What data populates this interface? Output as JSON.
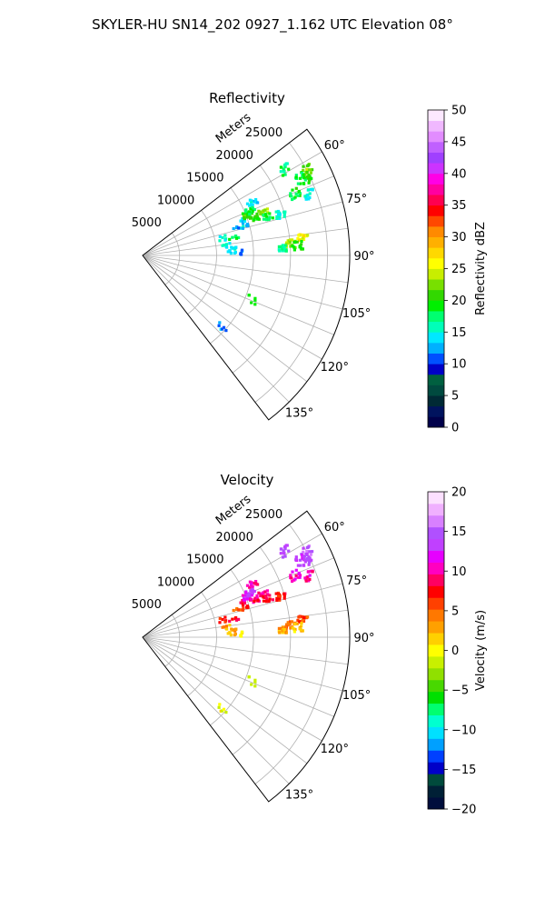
{
  "suptitle": "SKYLER-HU  SN14_202  0927_1.162 UTC Elevation 08°",
  "chart_data": [
    {
      "type": "heatmap",
      "projection": "polar-sector",
      "title": "Reflectivity",
      "radial_label": "Meters",
      "r_range": [
        0,
        28000
      ],
      "r_ticks": [
        "5000",
        "10000",
        "15000",
        "20000",
        "25000"
      ],
      "theta_range_deg": [
        52.5,
        142.5
      ],
      "theta_ticks": [
        "60°",
        "75°",
        "90°",
        "105°",
        "120°",
        "135°"
      ],
      "grid": true,
      "colorbar": {
        "label": "Reflectivity dBZ",
        "range": [
          0,
          50
        ],
        "ticks": [
          "0",
          "5",
          "10",
          "15",
          "20",
          "25",
          "30",
          "35",
          "40",
          "45",
          "50"
        ],
        "colormap": "pyart_NWSRef"
      },
      "echoes": [
        {
          "az_deg": 65.0,
          "r_m": 24500,
          "value": 20
        },
        {
          "az_deg": 62.5,
          "r_m": 25200,
          "value": 22
        },
        {
          "az_deg": 64.0,
          "r_m": 23800,
          "value": 18
        },
        {
          "az_deg": 59.0,
          "r_m": 22500,
          "value": 17
        },
        {
          "az_deg": 68.0,
          "r_m": 22200,
          "value": 19
        },
        {
          "az_deg": 70.0,
          "r_m": 24000,
          "value": 15
        },
        {
          "az_deg": 71.5,
          "r_m": 16000,
          "value": 20
        },
        {
          "az_deg": 70.5,
          "r_m": 17500,
          "value": 23
        },
        {
          "az_deg": 73.0,
          "r_m": 17800,
          "value": 18
        },
        {
          "az_deg": 73.5,
          "r_m": 19500,
          "value": 15
        },
        {
          "az_deg": 71.0,
          "r_m": 14500,
          "value": 14
        },
        {
          "az_deg": 69.0,
          "r_m": 15200,
          "value": 21
        },
        {
          "az_deg": 67.5,
          "r_m": 15800,
          "value": 18
        },
        {
          "az_deg": 73.0,
          "r_m": 13500,
          "value": 14
        },
        {
          "az_deg": 75.0,
          "r_m": 14200,
          "value": 12
        },
        {
          "az_deg": 64.0,
          "r_m": 16500,
          "value": 14
        },
        {
          "az_deg": 79.0,
          "r_m": 12500,
          "value": 18
        },
        {
          "az_deg": 78.0,
          "r_m": 11200,
          "value": 15
        },
        {
          "az_deg": 86.0,
          "r_m": 12500,
          "value": 15
        },
        {
          "az_deg": 88.0,
          "r_m": 11900,
          "value": 14
        },
        {
          "az_deg": 88.5,
          "r_m": 13500,
          "value": 12
        },
        {
          "az_deg": 83.5,
          "r_m": 11500,
          "value": 15
        },
        {
          "az_deg": 85.5,
          "r_m": 20000,
          "value": 23
        },
        {
          "az_deg": 84.0,
          "r_m": 21800,
          "value": 26
        },
        {
          "az_deg": 86.5,
          "r_m": 21000,
          "value": 20
        },
        {
          "az_deg": 87.5,
          "r_m": 19000,
          "value": 17
        },
        {
          "az_deg": 112.0,
          "r_m": 16000,
          "value": 19
        },
        {
          "az_deg": 132.0,
          "r_m": 14500,
          "value": 12
        }
      ]
    },
    {
      "type": "heatmap",
      "projection": "polar-sector",
      "title": "Velocity",
      "radial_label": "Meters",
      "r_range": [
        0,
        28000
      ],
      "r_ticks": [
        "5000",
        "10000",
        "15000",
        "20000",
        "25000"
      ],
      "theta_range_deg": [
        52.5,
        142.5
      ],
      "theta_ticks": [
        "60°",
        "75°",
        "90°",
        "105°",
        "120°",
        "135°"
      ],
      "grid": true,
      "colorbar": {
        "label": "Velocity (m/s)",
        "range": [
          -20,
          20
        ],
        "ticks": [
          "−20",
          "−15",
          "−10",
          "−5",
          "0",
          "5",
          "10",
          "15",
          "20"
        ],
        "colormap": "pyart_BuDRd18"
      },
      "echoes": [
        {
          "az_deg": 65.0,
          "r_m": 24500,
          "value": 14
        },
        {
          "az_deg": 62.5,
          "r_m": 25200,
          "value": 15
        },
        {
          "az_deg": 64.0,
          "r_m": 23800,
          "value": 13
        },
        {
          "az_deg": 59.0,
          "r_m": 22500,
          "value": 14
        },
        {
          "az_deg": 68.0,
          "r_m": 22200,
          "value": 11
        },
        {
          "az_deg": 70.0,
          "r_m": 24000,
          "value": 10
        },
        {
          "az_deg": 71.5,
          "r_m": 16000,
          "value": 9
        },
        {
          "az_deg": 70.5,
          "r_m": 17500,
          "value": 10
        },
        {
          "az_deg": 73.0,
          "r_m": 17800,
          "value": 8
        },
        {
          "az_deg": 73.5,
          "r_m": 19500,
          "value": 7
        },
        {
          "az_deg": 71.0,
          "r_m": 14500,
          "value": 9
        },
        {
          "az_deg": 69.0,
          "r_m": 15200,
          "value": 12
        },
        {
          "az_deg": 67.5,
          "r_m": 15800,
          "value": 13
        },
        {
          "az_deg": 73.0,
          "r_m": 13500,
          "value": 5
        },
        {
          "az_deg": 75.0,
          "r_m": 14200,
          "value": 6
        },
        {
          "az_deg": 64.0,
          "r_m": 16500,
          "value": 10
        },
        {
          "az_deg": 79.0,
          "r_m": 12500,
          "value": 8
        },
        {
          "az_deg": 78.0,
          "r_m": 11200,
          "value": 7
        },
        {
          "az_deg": 86.0,
          "r_m": 12500,
          "value": 4
        },
        {
          "az_deg": 88.0,
          "r_m": 11900,
          "value": 2
        },
        {
          "az_deg": 88.5,
          "r_m": 13500,
          "value": 1
        },
        {
          "az_deg": 83.5,
          "r_m": 11500,
          "value": 3
        },
        {
          "az_deg": 85.5,
          "r_m": 20000,
          "value": 4
        },
        {
          "az_deg": 84.0,
          "r_m": 21800,
          "value": 6
        },
        {
          "az_deg": 86.5,
          "r_m": 21000,
          "value": 2
        },
        {
          "az_deg": 87.5,
          "r_m": 19000,
          "value": 3
        },
        {
          "az_deg": 112.0,
          "r_m": 16000,
          "value": -2
        },
        {
          "az_deg": 132.0,
          "r_m": 14500,
          "value": 0
        }
      ]
    }
  ]
}
